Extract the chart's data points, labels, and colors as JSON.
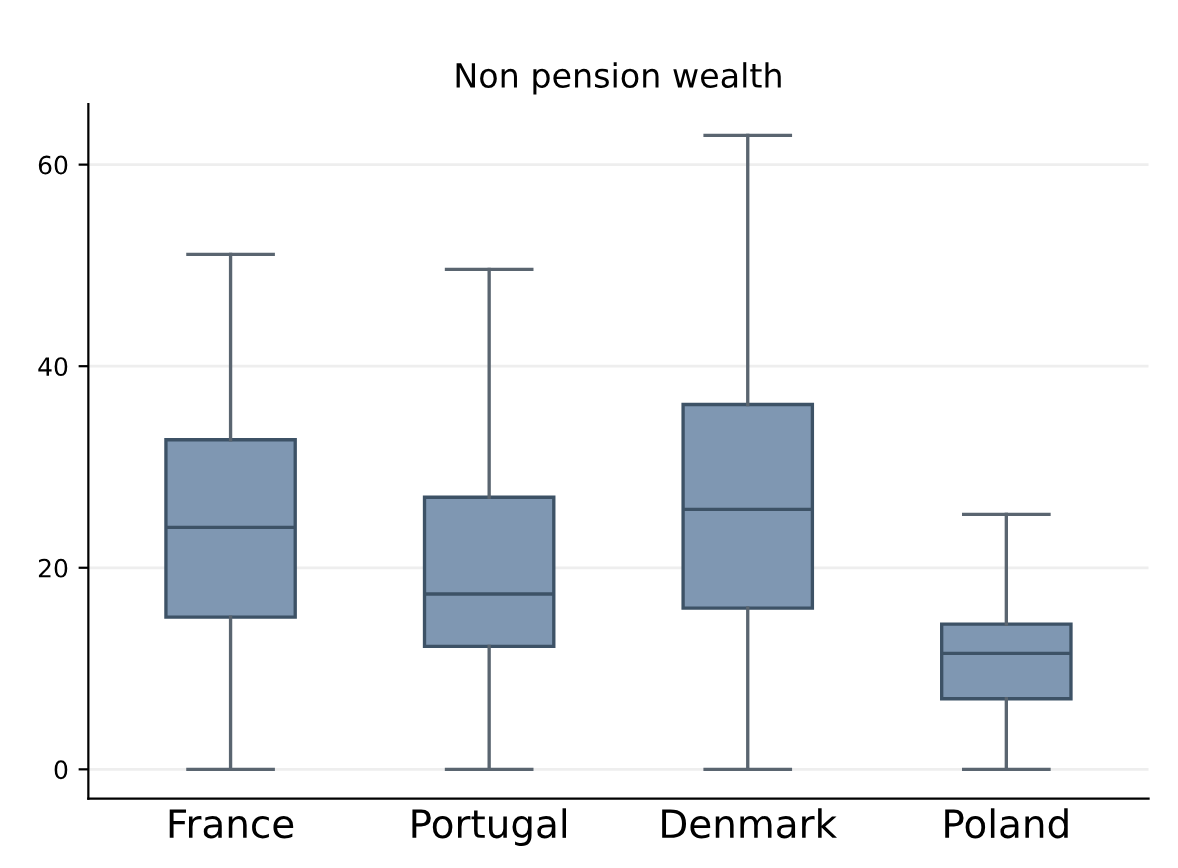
{
  "chart_data": {
    "type": "box",
    "title": "Non pension wealth",
    "categories": [
      "France",
      "Portugal",
      "Denmark",
      "Poland"
    ],
    "boxes": [
      {
        "low": 0,
        "q1": 15.1,
        "median": 24.0,
        "q3": 32.7,
        "high": 51.1
      },
      {
        "low": 0,
        "q1": 12.2,
        "median": 17.4,
        "q3": 27.0,
        "high": 49.6
      },
      {
        "low": 0,
        "q1": 16.0,
        "median": 25.8,
        "q3": 36.2,
        "high": 62.9
      },
      {
        "low": 0,
        "q1": 7.0,
        "median": 11.5,
        "q3": 14.4,
        "high": 25.3
      }
    ],
    "color": "#7f97b2",
    "ylim": [
      -2.9,
      66
    ],
    "yticks": [
      0,
      20,
      40,
      60
    ],
    "grid": "y"
  }
}
